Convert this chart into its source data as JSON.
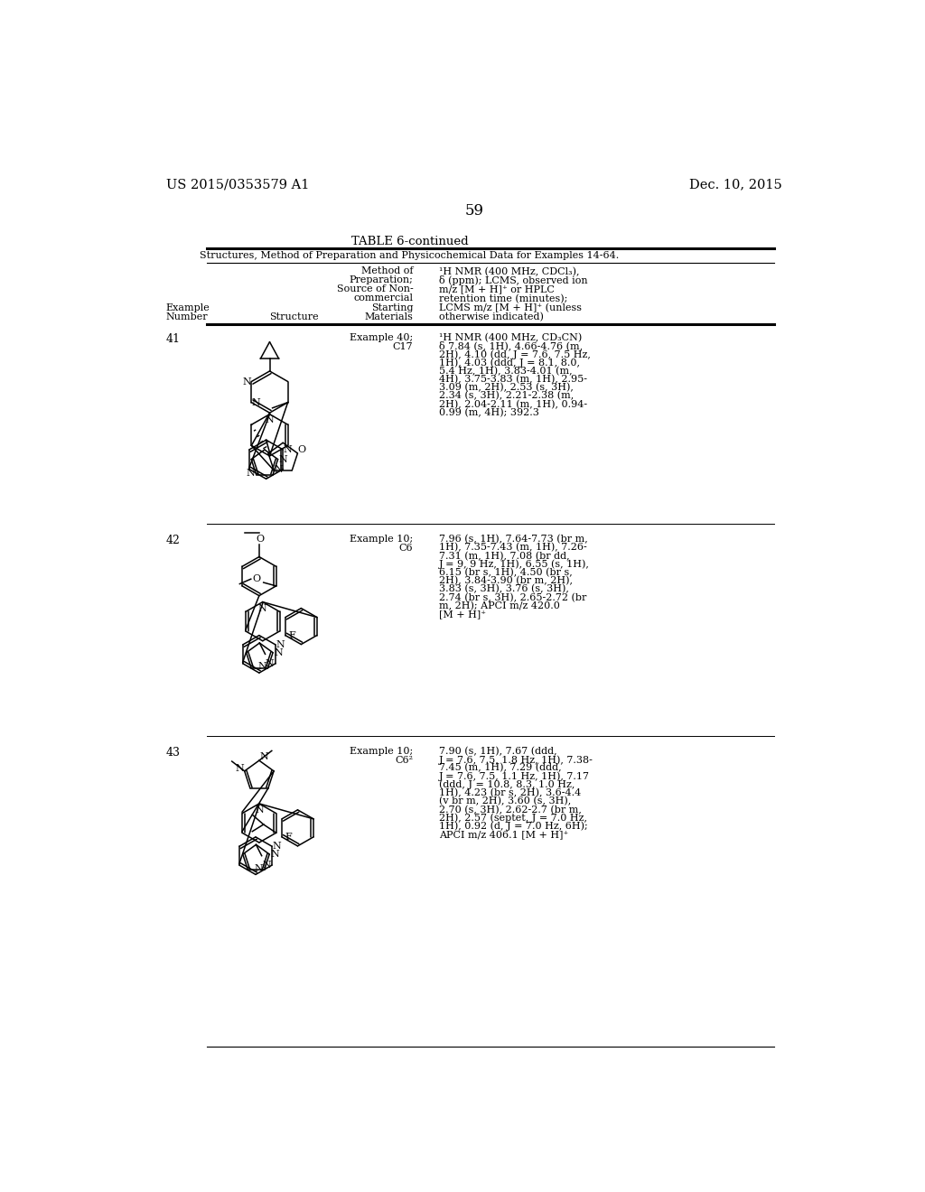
{
  "bg": "#ffffff",
  "header_left": "US 2015/0353579 A1",
  "header_right": "Dec. 10, 2015",
  "page_num": "59",
  "table_title": "TABLE 6-continued",
  "table_sub": "Structures, Method of Preparation and Physicochemical Data for Examples 14-64.",
  "col3_hdr": [
    "Method of",
    "Preparation;",
    "Source of Non-",
    "commercial",
    "Starting",
    "Materials"
  ],
  "col4_hdr": [
    "¹H NMR (400 MHz, CDCl₃),",
    "δ (ppm); LCMS, observed ion",
    "m/z [M + H]⁺ or HPLC",
    "retention time (minutes);",
    "LCMS m/z [M + H]⁺ (unless",
    "otherwise indicated)"
  ],
  "entries": [
    {
      "num": "41",
      "method": [
        "Example 40;",
        "C17"
      ],
      "nmr": [
        "¹H NMR (400 MHz, CD₃CN)",
        "δ 7.84 (s, 1H), 4.66-4.76 (m,",
        "2H), 4.10 (dd, J = 7.6, 7.5 Hz,",
        "1H), 4.03 (ddd, J = 8.1, 8.0,",
        "5.4 Hz, 1H), 3.83-4.01 (m,",
        "4H), 3.75-3.83 (m, 1H), 2.95-",
        "3.09 (m, 2H), 2.53 (s, 3H),",
        "2.34 (s, 3H), 2.21-2.38 (m,",
        "2H), 2.04-2.11 (m, 1H), 0.94-",
        "0.99 (m, 4H); 392.3"
      ]
    },
    {
      "num": "42",
      "method": [
        "Example 10;",
        "C6"
      ],
      "nmr": [
        "7.96 (s, 1H), 7.64-7.73 (br m,",
        "1H), 7.35-7.43 (m, 1H), 7.26-",
        "7.31 (m, 1H), 7.08 (br dd,",
        "J = 9, 9 Hz, 1H), 6.55 (s, 1H),",
        "6.15 (br s, 1H), 4.50 (br s,",
        "2H), 3.84-3.90 (br m, 2H),",
        "3.83 (s, 3H), 3.76 (s, 3H),",
        "2.74 (br s, 3H), 2.65-2.72 (br",
        "m, 2H); APCI m/z 420.0",
        "[M + H]⁺"
      ]
    },
    {
      "num": "43",
      "method": [
        "Example 10;",
        "C6²"
      ],
      "nmr": [
        "7.90 (s, 1H), 7.67 (ddd,",
        "J = 7.6, 7.5, 1.8 Hz, 1H), 7.38-",
        "7.45 (m, 1H), 7.29 (ddd,",
        "J = 7.6, 7.5, 1.1 Hz, 1H), 7.17",
        "(ddd, J = 10.8, 8.3, 1.0 Hz,",
        "1H), 4.23 (br s, 2H), 3.6-4.4",
        "(v br m, 2H), 3.60 (s, 3H),",
        "2.70 (s, 3H), 2.62-2.7 (br m,",
        "2H), 2.57 (septet, J = 7.0 Hz,",
        "1H), 0.92 (d, J = 7.0 Hz, 6H);",
        "APCI m/z 406.1 [M + H]⁺"
      ]
    }
  ]
}
